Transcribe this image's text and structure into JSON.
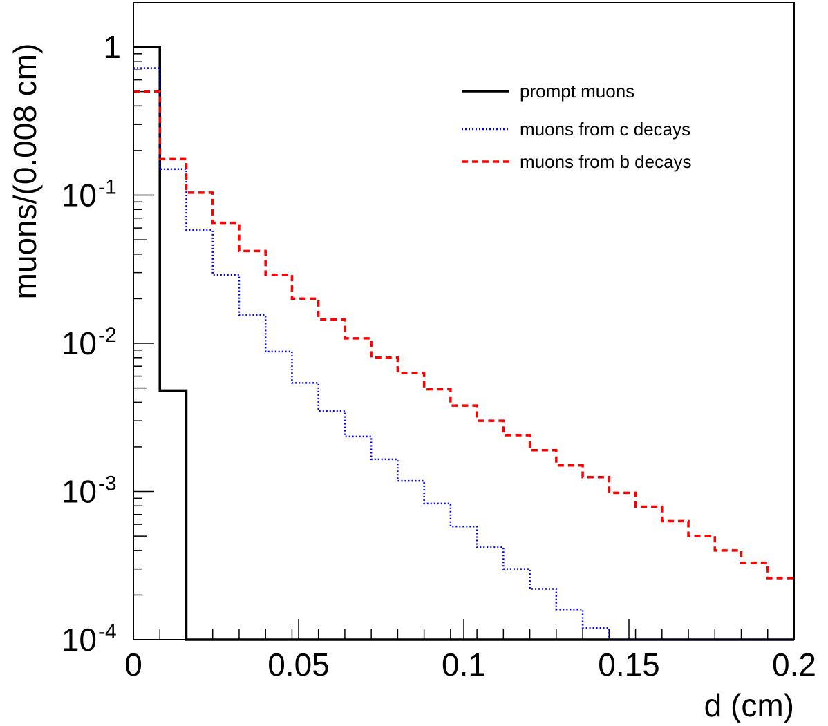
{
  "chart_data": {
    "type": "line",
    "step": true,
    "xlabel": "d (cm)",
    "ylabel": "muons/(0.008 cm)",
    "xlim": [
      0,
      0.2
    ],
    "ylim": [
      0.0001,
      1.0
    ],
    "yscale": "log",
    "bin_width": 0.008,
    "x_ticks": [
      {
        "value": 0,
        "label": "0"
      },
      {
        "value": 0.05,
        "label": "0.05"
      },
      {
        "value": 0.1,
        "label": "0.1"
      },
      {
        "value": 0.15,
        "label": "0.15"
      },
      {
        "value": 0.2,
        "label": "0.2"
      }
    ],
    "y_ticks": [
      {
        "value": 1,
        "label": "1",
        "exp": ""
      },
      {
        "value": 0.1,
        "label": "10",
        "exp": "-1"
      },
      {
        "value": 0.01,
        "label": "10",
        "exp": "-2"
      },
      {
        "value": 0.001,
        "label": "10",
        "exp": "-3"
      },
      {
        "value": 0.0001,
        "label": "10",
        "exp": "-4"
      }
    ],
    "legend_position": "top-right",
    "series": [
      {
        "name": "prompt muons",
        "color": "#000000",
        "style": "solid",
        "values": [
          1.0,
          0.0048,
          0.0001
        ]
      },
      {
        "name": "muons from c decays",
        "color": "#0000ff",
        "style": "dotted",
        "values": [
          0.72,
          0.15,
          0.058,
          0.029,
          0.0155,
          0.0088,
          0.0054,
          0.0035,
          0.00235,
          0.00165,
          0.00118,
          0.00083,
          0.00058,
          0.00042,
          0.0003,
          0.00022,
          0.00016,
          0.00012,
          0.0001
        ]
      },
      {
        "name": "muons from b decays",
        "color": "#ff0000",
        "style": "dashed",
        "values": [
          0.5,
          0.175,
          0.104,
          0.065,
          0.042,
          0.029,
          0.02,
          0.0145,
          0.0108,
          0.008,
          0.0063,
          0.0049,
          0.0038,
          0.003,
          0.0024,
          0.0019,
          0.0015,
          0.00125,
          0.00098,
          0.00079,
          0.00063,
          0.0005,
          0.0004,
          0.00033,
          0.00026
        ]
      }
    ]
  }
}
